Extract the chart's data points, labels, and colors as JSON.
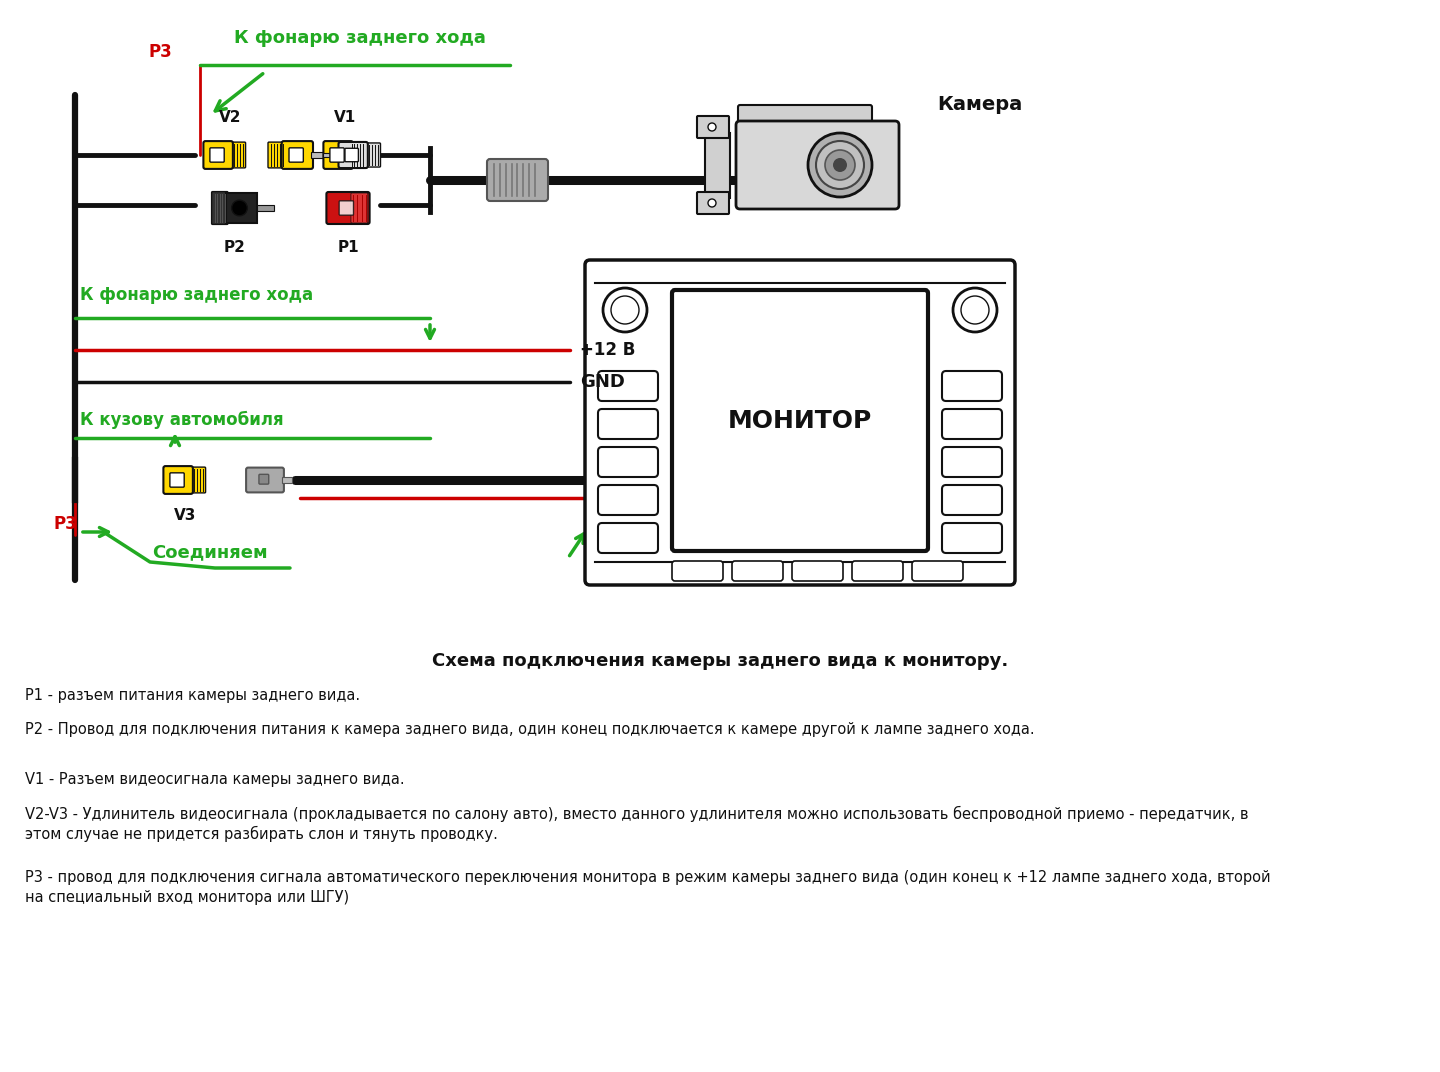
{
  "bg_color": "#ffffff",
  "green": "#22aa22",
  "red": "#cc0000",
  "yellow": "#FFD700",
  "blk": "#111111",
  "gray": "#888888",
  "light_gray": "#cccccc",
  "mid_gray": "#999999",
  "label_p3_top": "P3",
  "label_к_фонарю_top": "К фонарю заднего хода",
  "label_v2": "V2",
  "label_v1": "V1",
  "label_p2": "P2",
  "label_p1": "P1",
  "label_камера": "Камера",
  "label_к_фонарю_mid": "К фонарю заднего хода",
  "label_12v": "+12 В",
  "label_gnd": "GND",
  "label_к_кузову": "К кузову автомобиля",
  "label_монитор": "МОНИТОР",
  "label_v3": "V3",
  "label_p3_bot": "P3",
  "label_соединяем": "Соединяем",
  "diagram_title": "Схема подключения камеры заднего вида к монитору.",
  "text_p1": "P1 - разъем питания камеры заднего вида.",
  "text_p2": "P2 - Провод для подключения питания к камера заднего вида, один конец подключается к камере другой к лампе заднего хода.",
  "text_v1": "V1 - Разъем видеосигнала камеры заднего вида.",
  "text_v2v3_1": "V2-V3 - Удлинитель видеосигнала (прокладывается по салону авто), вместо данного удлинителя можно использовать беспроводной приемо - передатчик, в",
  "text_v2v3_2": "этом случае не придется разбирать слон и тянуть проводку.",
  "text_p3_1": "Р3 - провод для подключения сигнала автоматического переключения монитора в режим камеры заднего вида (один конец к +12 лампе заднего хода, второй",
  "text_p3_2": "на специальный вход монитора или ШГУ)"
}
